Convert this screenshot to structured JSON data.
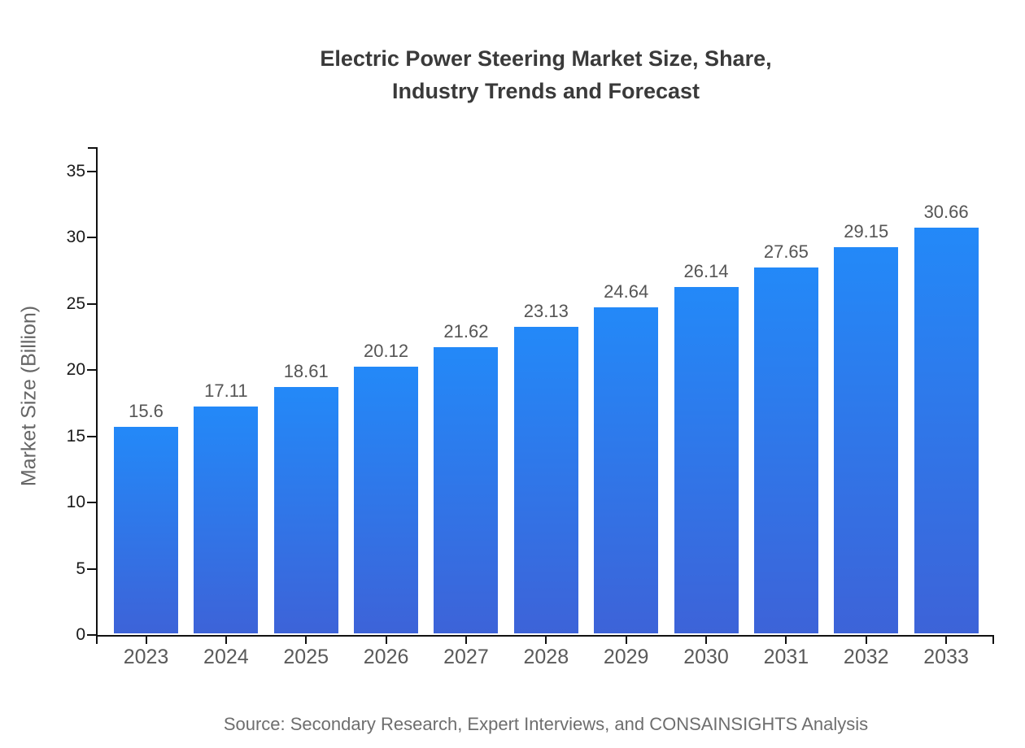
{
  "title": {
    "line1": "Electric Power Steering Market Size, Share,",
    "line2": "Industry Trends and Forecast"
  },
  "source": {
    "text": "Source: Secondary Research, Expert Interviews, and CONSAINSIGHTS Analysis"
  },
  "chart_data": {
    "type": "bar",
    "title": "Electric Power Steering Market Size, Share, Industry Trends and Forecast",
    "categories": [
      "2023",
      "2024",
      "2025",
      "2026",
      "2027",
      "2028",
      "2029",
      "2030",
      "2031",
      "2032",
      "2033"
    ],
    "values": [
      15.6,
      17.11,
      18.61,
      20.12,
      21.62,
      23.13,
      24.64,
      26.14,
      27.65,
      29.15,
      30.66
    ],
    "value_labels": [
      "15.6",
      "17.11",
      "18.61",
      "20.12",
      "21.62",
      "23.13",
      "24.64",
      "26.14",
      "27.65",
      "29.15",
      "30.66"
    ],
    "xlabel": "",
    "ylabel": "Market Size (Billion)",
    "ylim": [
      0,
      36.84
    ],
    "yticks": [
      0,
      5,
      10,
      15,
      20,
      25,
      30,
      35
    ],
    "grid": false,
    "legend": null,
    "colors": {
      "bar_gradient_top": "#2389f8",
      "bar_gradient_bottom": "#3d63d8",
      "axis": "#111111",
      "tick_label": "#1a1a1a",
      "value_label": "#555555",
      "category_label": "#5a5a5a",
      "title": "#3a3a3a",
      "source": "#6e6e6e"
    }
  }
}
